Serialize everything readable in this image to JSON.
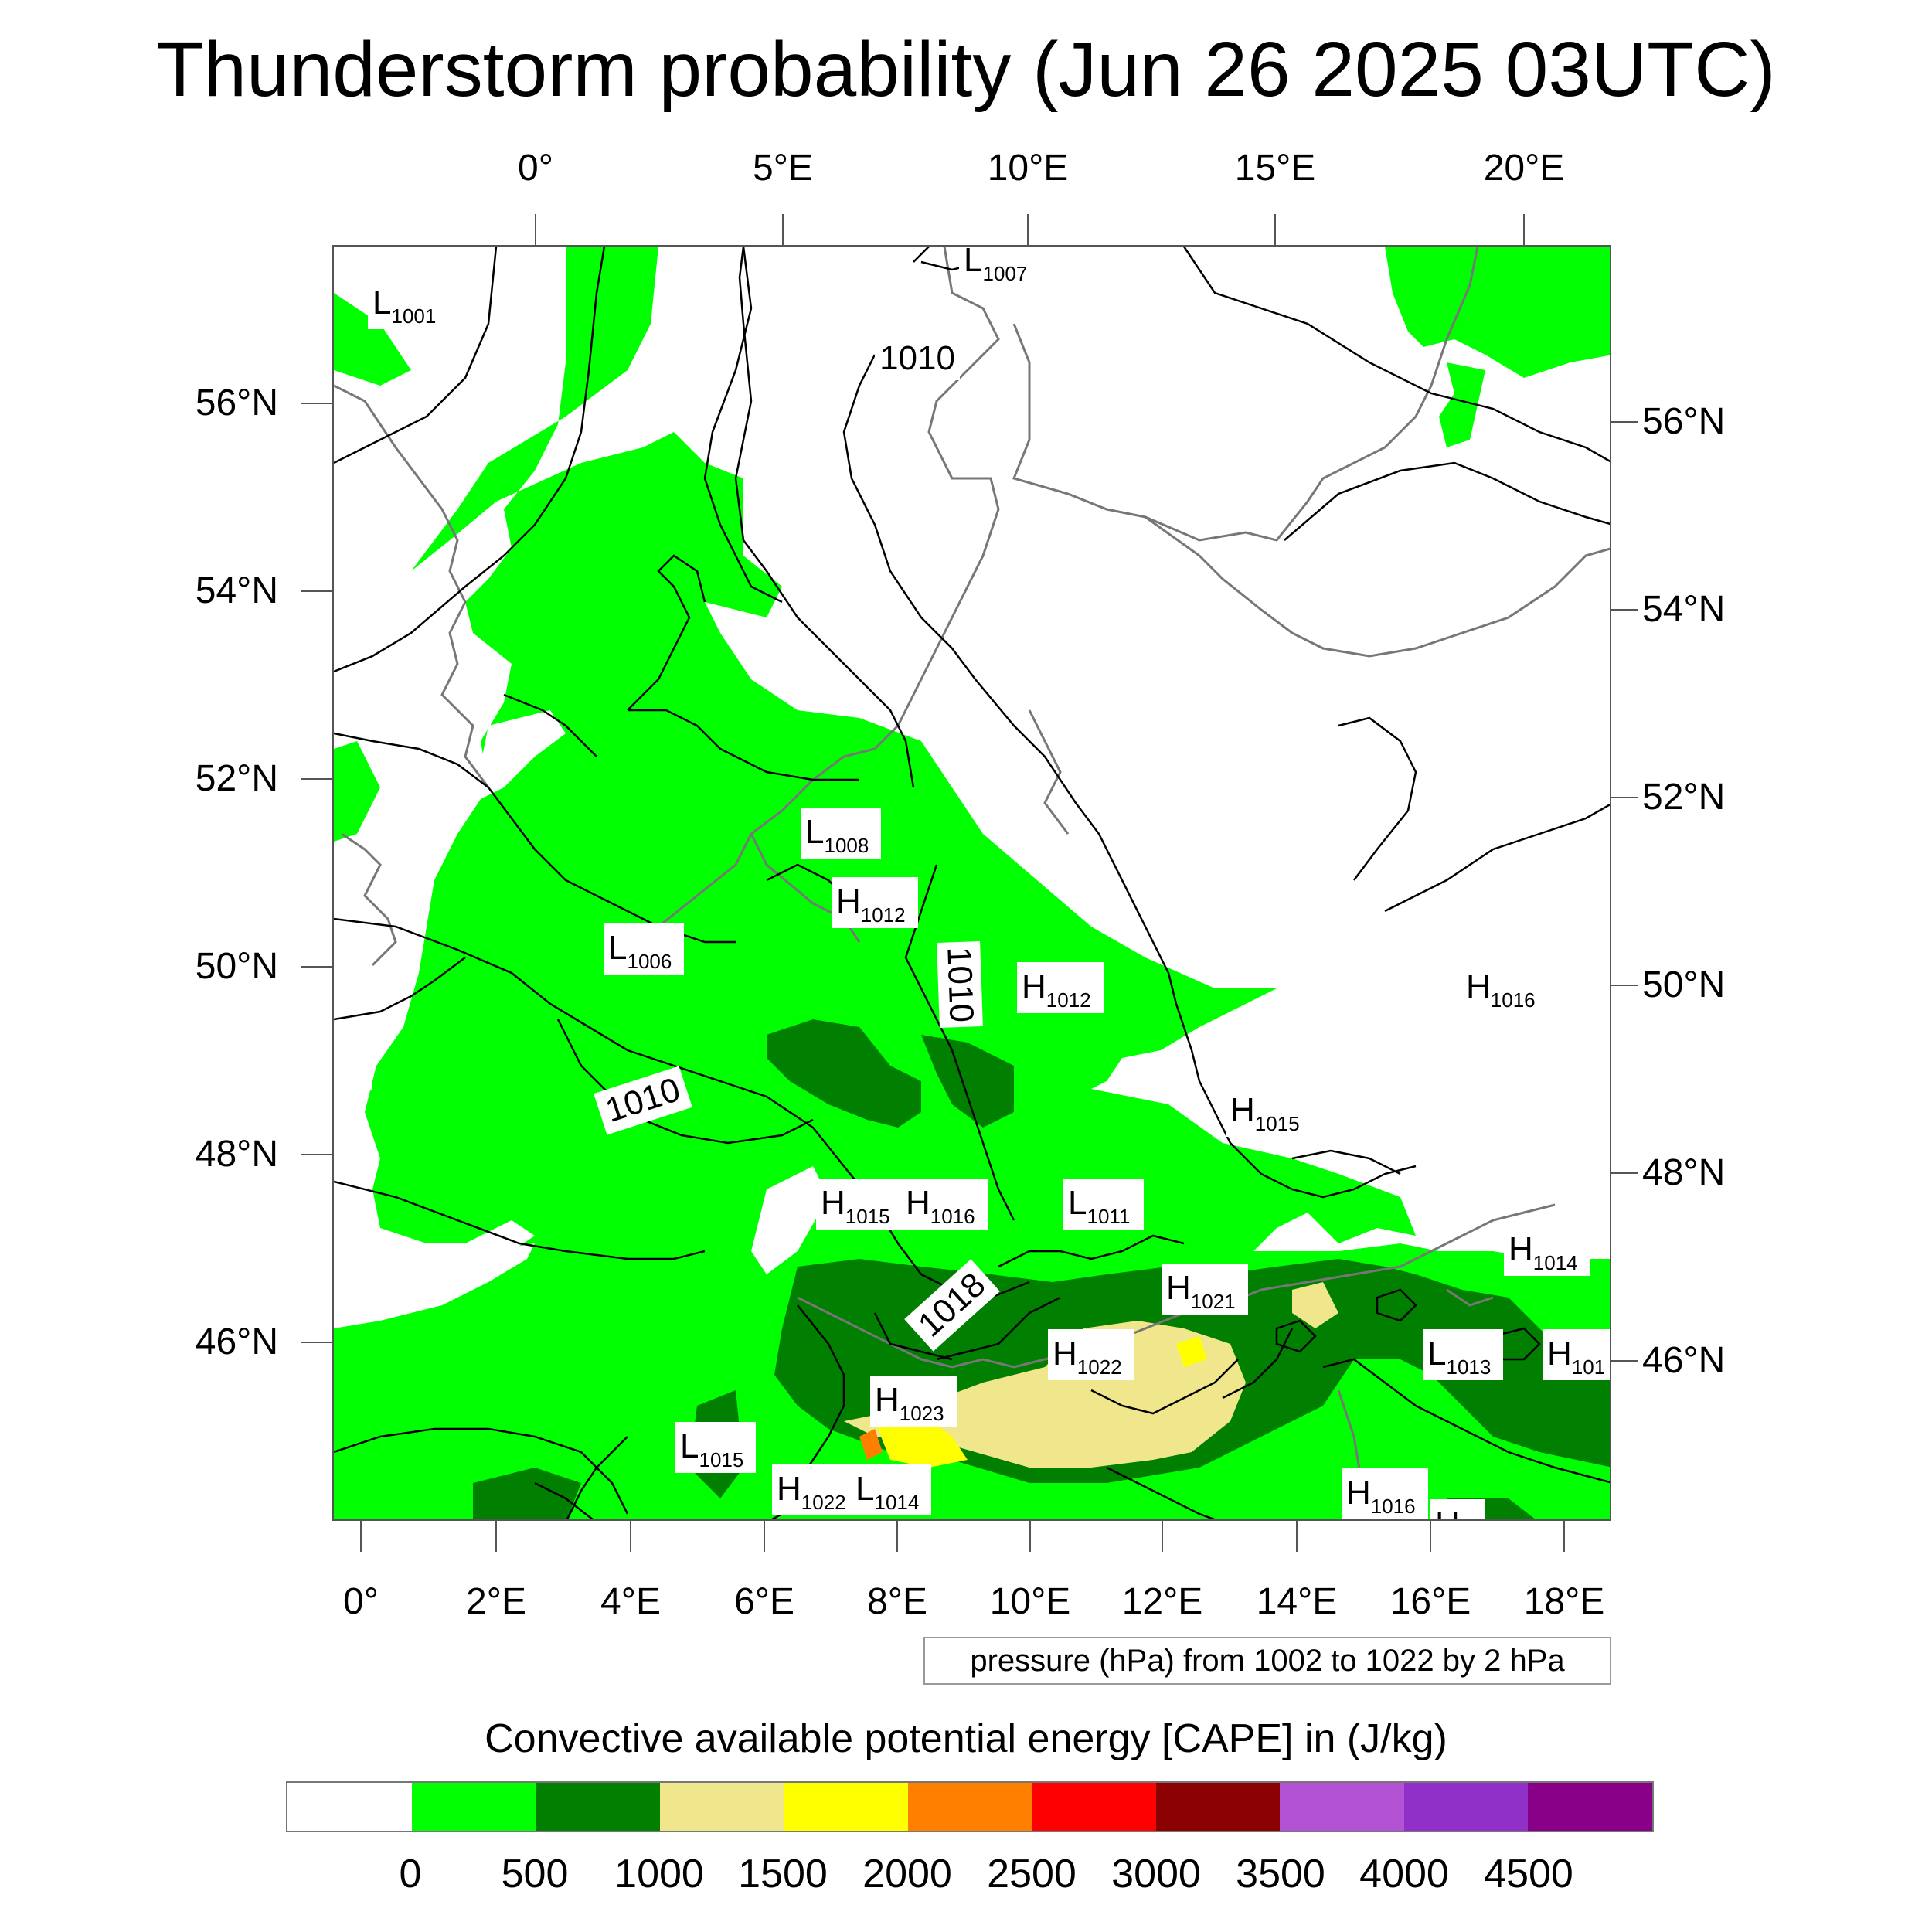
{
  "title": "Thunderstorm probability (Jun 26 2025 03UTC)",
  "axes": {
    "top_lon_labels": [
      "0°",
      "5°E",
      "10°E",
      "15°E",
      "20°E"
    ],
    "bottom_lon_labels": [
      "0°",
      "2°E",
      "4°E",
      "6°E",
      "8°E",
      "10°E",
      "12°E",
      "14°E",
      "16°E",
      "18°E"
    ],
    "left_lat_labels": [
      "56°N",
      "54°N",
      "52°N",
      "50°N",
      "48°N",
      "46°N"
    ],
    "right_lat_labels": [
      "56°N",
      "54°N",
      "52°N",
      "50°N",
      "48°N",
      "46°N"
    ]
  },
  "pressure_labels": {
    "isobar_1010_a": "1010",
    "isobar_1010_b": "1010",
    "isobar_1010_c": "1010",
    "isobar_1018": "1018"
  },
  "pressure_centers": [
    {
      "type": "L",
      "value": "1001"
    },
    {
      "type": "L",
      "value": "1007"
    },
    {
      "type": "L",
      "value": "1008"
    },
    {
      "type": "H",
      "value": "1012"
    },
    {
      "type": "L",
      "value": "1006"
    },
    {
      "type": "H",
      "value": "1012"
    },
    {
      "type": "H",
      "value": "1016"
    },
    {
      "type": "H",
      "value": "1015"
    },
    {
      "type": "H",
      "value": "1015"
    },
    {
      "type": "H",
      "value": "1016"
    },
    {
      "type": "L",
      "value": "1011"
    },
    {
      "type": "H",
      "value": "1014"
    },
    {
      "type": "H",
      "value": "1021"
    },
    {
      "type": "H",
      "value": "1022"
    },
    {
      "type": "L",
      "value": "1013"
    },
    {
      "type": "H",
      "value": "101"
    },
    {
      "type": "H",
      "value": "1023"
    },
    {
      "type": "L",
      "value": "1015"
    },
    {
      "type": "H",
      "value": "1022"
    },
    {
      "type": "L",
      "value": "1014"
    },
    {
      "type": "H",
      "value": "1016"
    },
    {
      "type": "H",
      "value": ""
    }
  ],
  "pressure_note": "pressure (hPa) from 1002 to 1022 by 2 hPa",
  "colorbar": {
    "title": "Convective available potential energy [CAPE] in (J/kg)",
    "colors": [
      "#ffffff",
      "#00ff00",
      "#007f00",
      "#f0e68c",
      "#ffff00",
      "#ff8000",
      "#ff0000",
      "#8b0000",
      "#b452d6",
      "#9030c8",
      "#880088"
    ],
    "labels": [
      "0",
      "500",
      "1000",
      "1500",
      "2000",
      "2500",
      "3000",
      "3500",
      "4000",
      "4500"
    ]
  },
  "fill_colors": {
    "cape_0_500": "#00ff00",
    "cape_500_1000": "#007f00",
    "cape_1000_1500": "#f0e68c",
    "cape_1500_2000": "#ffff00",
    "cape_2000_2500": "#ff8000",
    "coastline": "#777777",
    "isobar": "#000000"
  }
}
